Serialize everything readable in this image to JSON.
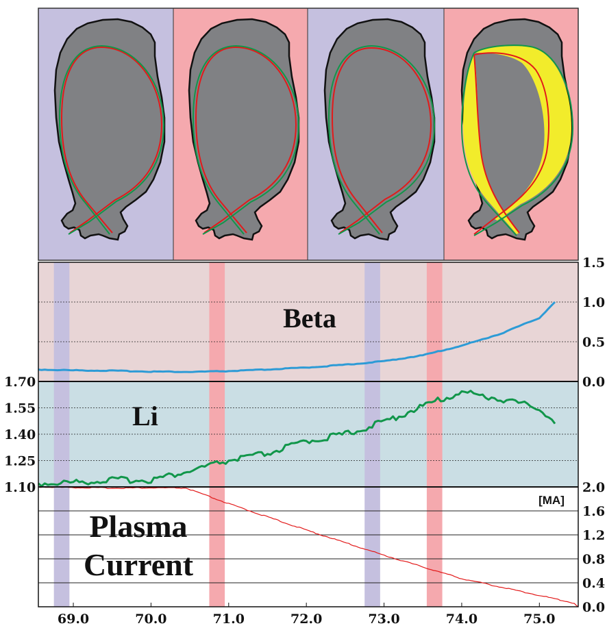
{
  "colors": {
    "blue_band": "#c5c0df",
    "pink_band": "#f5a9ae",
    "beta_bg": "#e8d5d6",
    "li_bg": "#cadee4",
    "beta_line": "#2d9bd6",
    "li_line": "#11964a",
    "current_line": "#e21a1a",
    "vessel": "#808184"
  },
  "chart_data": [
    {
      "type": "image",
      "panels": [
        {
          "background": "blue"
        },
        {
          "background": "pink"
        },
        {
          "background": "blue"
        },
        {
          "background": "pink"
        }
      ]
    },
    {
      "type": "line",
      "x_ticks": [
        "69.0",
        "70.0",
        "71.0",
        "72.0",
        "73.0",
        "74.0",
        "75.0"
      ],
      "xlim": [
        68.55,
        75.5
      ],
      "highlight_bands": [
        {
          "color": "blue",
          "from": 68.75,
          "to": 68.95
        },
        {
          "color": "pink",
          "from": 70.75,
          "to": 70.95
        },
        {
          "color": "blue",
          "from": 72.75,
          "to": 72.95
        },
        {
          "color": "pink",
          "from": 73.55,
          "to": 73.75
        }
      ],
      "panels": [
        {
          "label": "Beta",
          "ylim": [
            0.0,
            1.5
          ],
          "y_ticks": [
            "0.0",
            "0.5",
            "1.0",
            "1.5"
          ],
          "series": [
            {
              "x": [
                68.55,
                69.0,
                69.5,
                70.0,
                70.5,
                71.0,
                71.5,
                72.0,
                72.5,
                73.0,
                73.5,
                74.0,
                74.5,
                75.0,
                75.2
              ],
              "y": [
                0.15,
                0.14,
                0.135,
                0.125,
                0.12,
                0.13,
                0.15,
                0.175,
                0.21,
                0.255,
                0.33,
                0.45,
                0.6,
                0.8,
                1.0
              ]
            }
          ]
        },
        {
          "label": "Li",
          "ylim": [
            1.1,
            1.7
          ],
          "y_ticks": [
            "1.10",
            "1.25",
            "1.40",
            "1.55",
            "1.70"
          ],
          "series": [
            {
              "x": [
                68.55,
                69.0,
                69.5,
                70.0,
                70.5,
                71.0,
                71.5,
                72.0,
                72.5,
                73.0,
                73.5,
                74.0,
                74.5,
                75.0,
                75.2
              ],
              "y": [
                1.12,
                1.125,
                1.14,
                1.14,
                1.19,
                1.25,
                1.29,
                1.36,
                1.4,
                1.47,
                1.56,
                1.64,
                1.6,
                1.55,
                1.46
              ]
            }
          ]
        },
        {
          "label": "Plasma Current",
          "unit": "[MA]",
          "ylim": [
            0.0,
            2.0
          ],
          "y_ticks": [
            "0.0",
            "0.4",
            "0.8",
            "1.2",
            "1.6",
            "2.0"
          ],
          "series": [
            {
              "x": [
                68.55,
                69.0,
                69.5,
                70.0,
                70.45,
                71.0,
                72.0,
                73.0,
                74.0,
                75.0,
                75.45,
                75.5
              ],
              "y": [
                2.0,
                1.99,
                1.98,
                1.985,
                1.98,
                1.72,
                1.28,
                0.86,
                0.47,
                0.19,
                0.06,
                0.0
              ]
            }
          ]
        }
      ]
    }
  ]
}
